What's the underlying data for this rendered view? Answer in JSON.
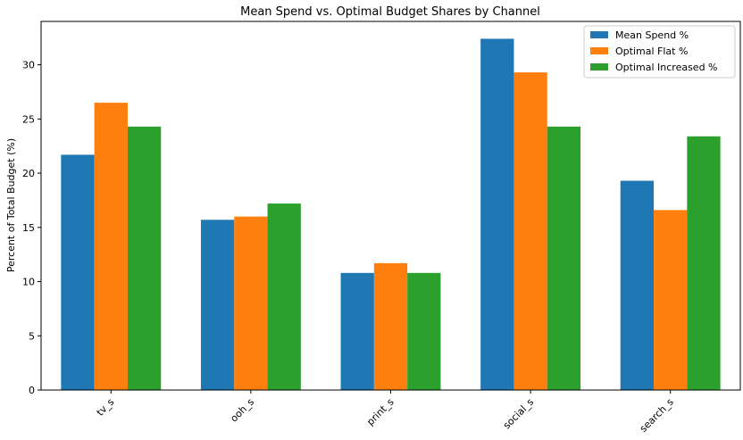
{
  "chart_data": {
    "type": "bar",
    "title": "Mean Spend vs. Optimal Budget Shares by Channel",
    "xlabel": "",
    "ylabel": "Percent of Total Budget (%)",
    "ylim": [
      0,
      34
    ],
    "yticks": [
      0,
      5,
      10,
      15,
      20,
      25,
      30
    ],
    "grid": false,
    "legend_position": "top-right",
    "categories": [
      "tv_s",
      "ooh_s",
      "print_s",
      "social_s",
      "search_s"
    ],
    "series": [
      {
        "name": "Mean Spend %",
        "color": "#1f77b4",
        "values": [
          21.7,
          15.7,
          10.8,
          32.4,
          19.3
        ]
      },
      {
        "name": "Optimal Flat %",
        "color": "#ff7f0e",
        "values": [
          26.5,
          16.0,
          11.7,
          29.3,
          16.6
        ]
      },
      {
        "name": "Optimal Increased %",
        "color": "#2ca02c",
        "values": [
          24.3,
          17.2,
          10.8,
          24.3,
          23.4
        ]
      }
    ]
  }
}
